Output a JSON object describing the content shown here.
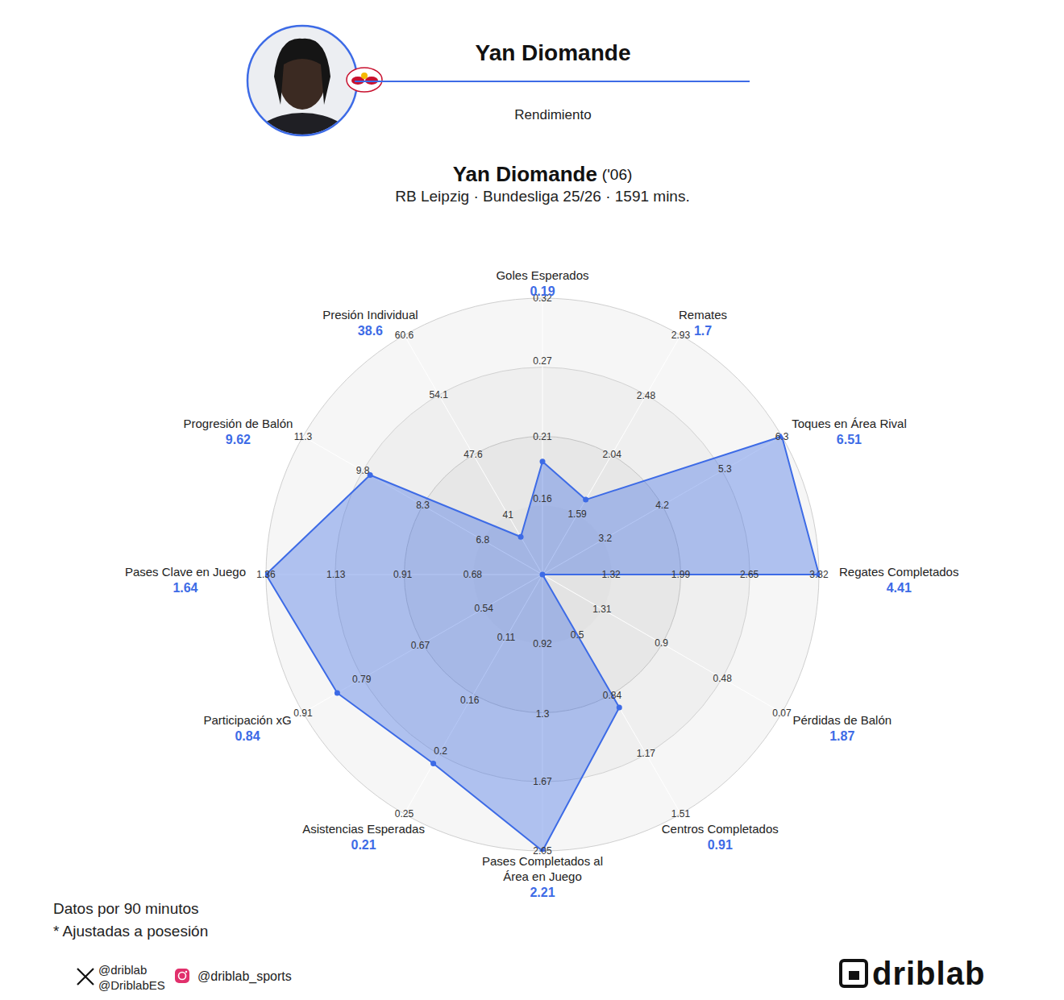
{
  "header": {
    "title": "Yan Diomande",
    "subtitle": "Rendimiento"
  },
  "chart_data": {
    "type": "radar",
    "title": "Yan Diomande",
    "title_note": "('06)",
    "subtitle": "RB Leipzig · Bundesliga 25/26 · 1591 mins.",
    "color": "#3d6be6",
    "data_labels": true,
    "categories": [
      "Goles Esperados",
      "Remates",
      "Toques en Área Rival",
      "Regates Completados",
      "Pérdidas de Balón",
      "Centros Completados",
      "Pases Completados al Área en Juego",
      "Asistencias Esperadas",
      "Participación xG",
      "Pases Clave en Juego",
      "Progresión de Balón",
      "Presión Individual"
    ],
    "values": [
      0.19,
      1.7,
      6.51,
      4.41,
      1.87,
      0.91,
      2.21,
      0.21,
      0.84,
      1.64,
      9.62,
      38.6
    ],
    "axes": [
      {
        "lim": [
          0.1,
          0.32
        ],
        "ticks": [
          0.16,
          0.21,
          0.27,
          0.32
        ]
      },
      {
        "lim": [
          1.14,
          2.93
        ],
        "ticks": [
          1.59,
          2.04,
          2.48,
          2.93
        ]
      },
      {
        "lim": [
          2.1,
          6.3
        ],
        "ticks": [
          3.2,
          4.2,
          5.3,
          6.3
        ]
      },
      {
        "lim": [
          0.66,
          3.32
        ],
        "ticks": [
          1.32,
          1.99,
          2.65,
          3.32
        ]
      },
      {
        "lim": [
          1.72,
          0.07
        ],
        "ticks": [
          1.31,
          0.9,
          0.48,
          0.07
        ]
      },
      {
        "lim": [
          0.16,
          1.51
        ],
        "ticks": [
          0.5,
          0.84,
          1.17,
          1.51
        ]
      },
      {
        "lim": [
          0.54,
          2.05
        ],
        "ticks": [
          0.92,
          1.3,
          1.67,
          2.05
        ]
      },
      {
        "lim": [
          0.06,
          0.25
        ],
        "ticks": [
          0.11,
          0.16,
          0.2,
          0.25
        ]
      },
      {
        "lim": [
          0.42,
          0.91
        ],
        "ticks": [
          0.54,
          0.67,
          0.79,
          0.91
        ]
      },
      {
        "lim": [
          0.45,
          1.36
        ],
        "ticks": [
          0.68,
          0.91,
          1.13,
          1.36
        ]
      },
      {
        "lim": [
          5.3,
          11.3
        ],
        "ticks": [
          6.8,
          8.3,
          9.8,
          11.3
        ]
      },
      {
        "lim": [
          34.5,
          60.6
        ],
        "ticks": [
          41,
          47.6,
          54.1,
          60.6
        ]
      }
    ]
  },
  "footer": {
    "notes": [
      "Datos por 90 minutos",
      "* Ajustadas a posesión"
    ],
    "social": {
      "x": [
        "@driblab",
        "@DriblabES"
      ],
      "instagram": "@driblab_sports"
    },
    "brand": "driblab"
  }
}
